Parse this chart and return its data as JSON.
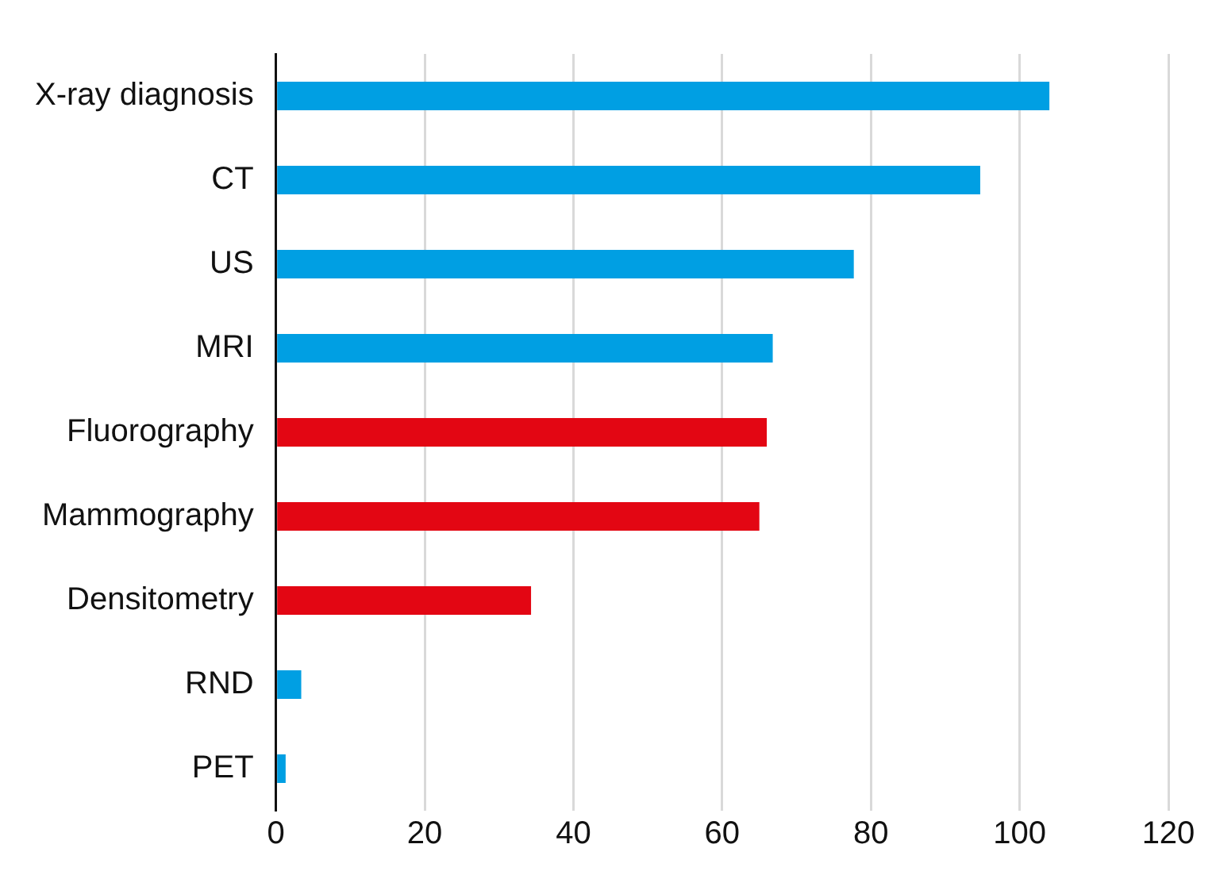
{
  "chart_data": {
    "type": "bar",
    "orientation": "horizontal",
    "categories": [
      "X-ray diagnosis",
      "CT",
      "US",
      "MRI",
      "Fluorography",
      "Mammography",
      "Densitometry",
      "RND",
      "PET"
    ],
    "values": [
      104,
      94.7,
      77.7,
      66.8,
      66,
      65,
      34.3,
      3.4,
      1.3
    ],
    "colors": [
      "#009fe3",
      "#009fe3",
      "#009fe3",
      "#009fe3",
      "#e30613",
      "#e30613",
      "#e30613",
      "#009fe3",
      "#009fe3"
    ],
    "xlim": [
      0,
      120
    ],
    "xticks": [
      0,
      20,
      40,
      60,
      80,
      100,
      120
    ],
    "grid": "x",
    "legend": false
  }
}
